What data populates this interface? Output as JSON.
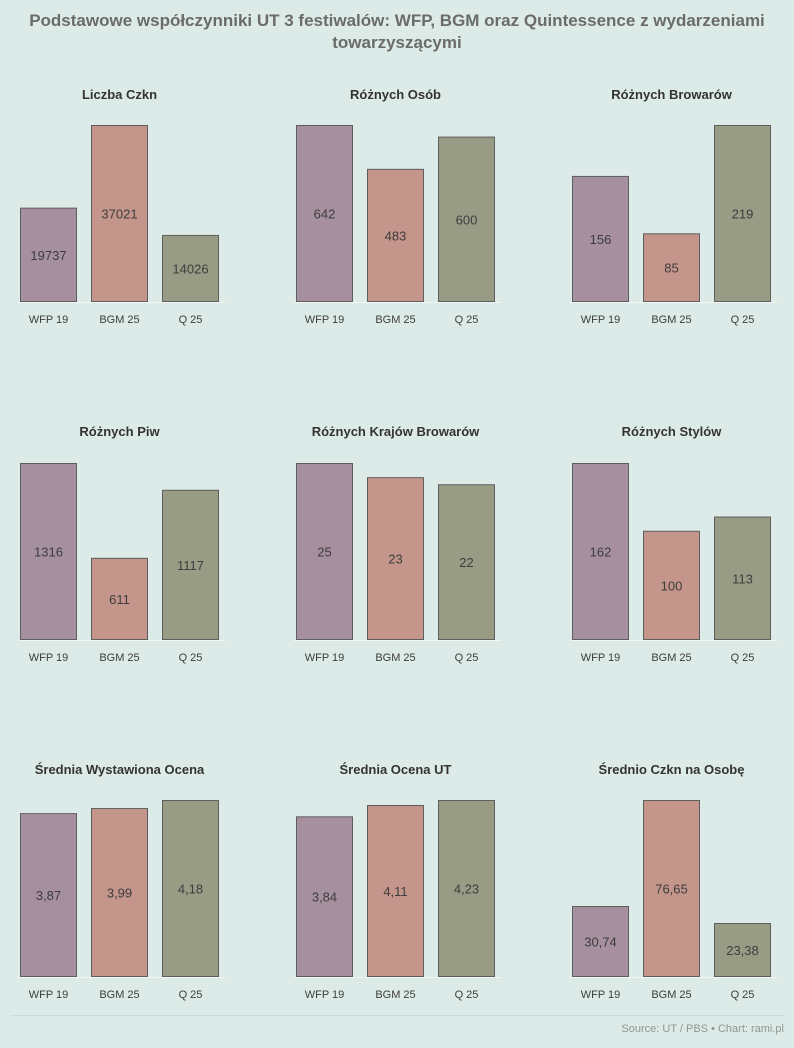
{
  "title": "Podstawowe współczynniki UT 3 festiwalów: WFP, BGM oraz Quintessence z wydarzeniami towarzyszącymi",
  "footer": "Source: UT / PBS • Chart: rami.pl",
  "colors": {
    "WFP 19": "#a6909f",
    "BGM 25": "#c4958a",
    "Q 25": "#999c85",
    "stroke": "#5e5e5e",
    "label": "#3d3d3d",
    "title": "#333333"
  },
  "chart_data": [
    {
      "type": "bar",
      "title": "Liczba Czkn",
      "categories": [
        "WFP 19",
        "BGM 25",
        "Q 25"
      ],
      "values": [
        19737,
        37021,
        14026
      ],
      "labels": [
        "19737",
        "37021",
        "14026"
      ]
    },
    {
      "type": "bar",
      "title": "Różnych Osób",
      "categories": [
        "WFP 19",
        "BGM 25",
        "Q 25"
      ],
      "values": [
        642,
        483,
        600
      ],
      "labels": [
        "642",
        "483",
        "600"
      ]
    },
    {
      "type": "bar",
      "title": "Różnych Browarów",
      "categories": [
        "WFP 19",
        "BGM 25",
        "Q 25"
      ],
      "values": [
        156,
        85,
        219
      ],
      "labels": [
        "156",
        "85",
        "219"
      ]
    },
    {
      "type": "bar",
      "title": "Różnych Piw",
      "categories": [
        "WFP 19",
        "BGM 25",
        "Q 25"
      ],
      "values": [
        1316,
        611,
        1117
      ],
      "labels": [
        "1316",
        "611",
        "1117"
      ]
    },
    {
      "type": "bar",
      "title": "Różnych Krajów Browarów",
      "categories": [
        "WFP 19",
        "BGM 25",
        "Q 25"
      ],
      "values": [
        25,
        23,
        22
      ],
      "labels": [
        "25",
        "23",
        "22"
      ]
    },
    {
      "type": "bar",
      "title": "Różnych Stylów",
      "categories": [
        "WFP 19",
        "BGM 25",
        "Q 25"
      ],
      "values": [
        162,
        100,
        113
      ],
      "labels": [
        "162",
        "100",
        "113"
      ]
    },
    {
      "type": "bar",
      "title": "Średnia Wystawiona Ocena",
      "categories": [
        "WFP 19",
        "BGM 25",
        "Q 25"
      ],
      "values": [
        3.87,
        3.99,
        4.18
      ],
      "labels": [
        "3,87",
        "3,99",
        "4,18"
      ]
    },
    {
      "type": "bar",
      "title": "Średnia Ocena UT",
      "categories": [
        "WFP 19",
        "BGM 25",
        "Q 25"
      ],
      "values": [
        3.84,
        4.11,
        4.23
      ],
      "labels": [
        "3,84",
        "4,11",
        "4,23"
      ]
    },
    {
      "type": "bar",
      "title": "Średnio Czkn na Osobę",
      "categories": [
        "WFP 19",
        "BGM 25",
        "Q 25"
      ],
      "values": [
        30.74,
        76.65,
        23.38
      ],
      "labels": [
        "30,74",
        "76,65",
        "23,38"
      ]
    }
  ]
}
